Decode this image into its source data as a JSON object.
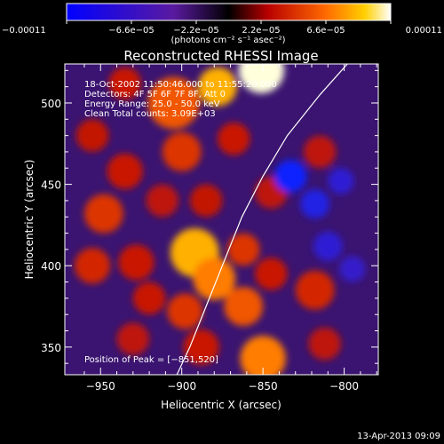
{
  "chart_data": {
    "type": "heatmap",
    "title": "Reconstructed RHESSI Image",
    "xlabel": "Heliocentric X (arcsec)",
    "ylabel": "Heliocentric Y (arcsec)",
    "xlim": [
      -972,
      -779
    ],
    "ylim": [
      333,
      524
    ],
    "xticks": [
      -950,
      -900,
      -850,
      -800
    ],
    "xtick_labels": [
      "−950",
      "−900",
      "−850",
      "−800"
    ],
    "yticks": [
      350,
      400,
      450,
      500
    ],
    "ytick_labels": [
      "350",
      "400",
      "450",
      "500"
    ],
    "colorbar": {
      "min": -0.00011,
      "max": 0.00011,
      "ticks": [
        -0.00011,
        -6.6e-05,
        -2.2e-05,
        2.2e-05,
        6.6e-05,
        0.00011
      ],
      "tick_labels": [
        "−0.00011",
        "−6.6e−05",
        "−2.2e−05",
        "2.2e−05",
        "6.6e−05",
        "0.00011"
      ],
      "unit": "(photons cm⁻² s⁻¹ asec⁻²)"
    },
    "annotations": [
      "18-Oct-2002 11:50:46.000 to 11:55:20.000",
      "Detectors: 4F 5F 6F 7F 8F, Att 0",
      "Energy Range: 25.0 - 50.0 keV",
      "Clean     Total counts: 3.09E+03"
    ],
    "peak_label": "Position of Peak = [−851,520]",
    "peak": [
      -851,
      520
    ],
    "limb_curve": [
      [
        -903,
        333
      ],
      [
        -895,
        350
      ],
      [
        -885,
        375
      ],
      [
        -875,
        400
      ],
      [
        -863,
        430
      ],
      [
        -850,
        455
      ],
      [
        -835,
        480
      ],
      [
        -815,
        505
      ],
      [
        -798,
        524
      ]
    ],
    "sources": [
      {
        "x": -851,
        "y": 520,
        "r": 14,
        "v": 0.00011
      },
      {
        "x": -878,
        "y": 510,
        "r": 12,
        "v": 9e-05
      },
      {
        "x": -905,
        "y": 500,
        "r": 16,
        "v": 7e-05
      },
      {
        "x": -935,
        "y": 512,
        "r": 10,
        "v": 5e-05
      },
      {
        "x": -900,
        "y": 470,
        "r": 12,
        "v": 6e-05
      },
      {
        "x": -868,
        "y": 478,
        "r": 10,
        "v": 5e-05
      },
      {
        "x": -955,
        "y": 480,
        "r": 10,
        "v": 4.5e-05
      },
      {
        "x": -935,
        "y": 458,
        "r": 11,
        "v": 5e-05
      },
      {
        "x": -948,
        "y": 432,
        "r": 12,
        "v": 6e-05
      },
      {
        "x": -912,
        "y": 440,
        "r": 10,
        "v": 4e-05
      },
      {
        "x": -885,
        "y": 440,
        "r": 10,
        "v": 4.5e-05
      },
      {
        "x": -845,
        "y": 445,
        "r": 10,
        "v": 4e-05
      },
      {
        "x": -955,
        "y": 400,
        "r": 11,
        "v": 5.5e-05
      },
      {
        "x": -928,
        "y": 402,
        "r": 11,
        "v": 5e-05
      },
      {
        "x": -892,
        "y": 408,
        "r": 15,
        "v": 9e-05
      },
      {
        "x": -880,
        "y": 392,
        "r": 13,
        "v": 8e-05
      },
      {
        "x": -862,
        "y": 410,
        "r": 10,
        "v": 6e-05
      },
      {
        "x": -920,
        "y": 380,
        "r": 10,
        "v": 5e-05
      },
      {
        "x": -898,
        "y": 372,
        "r": 11,
        "v": 6e-05
      },
      {
        "x": -862,
        "y": 375,
        "r": 12,
        "v": 7e-05
      },
      {
        "x": -845,
        "y": 395,
        "r": 10,
        "v": 5e-05
      },
      {
        "x": -818,
        "y": 385,
        "r": 12,
        "v": 5.5e-05
      },
      {
        "x": -930,
        "y": 355,
        "r": 10,
        "v": 4e-05
      },
      {
        "x": -888,
        "y": 350,
        "r": 11,
        "v": 5e-05
      },
      {
        "x": -850,
        "y": 343,
        "r": 14,
        "v": 8e-05
      },
      {
        "x": -812,
        "y": 352,
        "r": 10,
        "v": 4e-05
      },
      {
        "x": -815,
        "y": 470,
        "r": 10,
        "v": 4e-05
      },
      {
        "x": -833,
        "y": 455,
        "r": 10,
        "v": -0.00011
      },
      {
        "x": -818,
        "y": 438,
        "r": 9,
        "v": -8e-05
      },
      {
        "x": -802,
        "y": 452,
        "r": 8,
        "v": -6e-05
      },
      {
        "x": -810,
        "y": 412,
        "r": 9,
        "v": -6e-05
      },
      {
        "x": -795,
        "y": 398,
        "r": 8,
        "v": -5e-05
      }
    ]
  },
  "footer": {
    "date": "13-Apr-2013 09:09"
  }
}
